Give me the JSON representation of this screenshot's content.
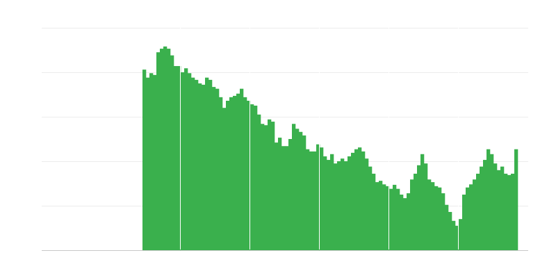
{
  "chart_data": {
    "type": "bar",
    "color": "#3ab04d",
    "grid": true,
    "ylim": [
      0,
      5
    ],
    "yticks": [
      0,
      1,
      2,
      3,
      4,
      5
    ],
    "values": [
      null,
      null,
      null,
      null,
      null,
      null,
      null,
      null,
      null,
      null,
      null,
      null,
      null,
      null,
      null,
      null,
      null,
      null,
      null,
      null,
      null,
      null,
      null,
      null,
      null,
      null,
      null,
      null,
      null,
      4.06,
      3.88,
      3.98,
      3.94,
      4.45,
      4.53,
      4.58,
      4.53,
      4.38,
      4.14,
      4.14,
      4.0,
      4.09,
      3.98,
      3.88,
      3.83,
      3.75,
      3.72,
      3.88,
      3.83,
      3.67,
      3.63,
      3.44,
      3.2,
      3.36,
      3.44,
      3.47,
      3.52,
      3.63,
      3.44,
      3.36,
      3.28,
      3.25,
      3.05,
      2.84,
      2.81,
      2.94,
      2.89,
      2.42,
      2.53,
      2.34,
      2.34,
      2.5,
      2.84,
      2.73,
      2.66,
      2.58,
      2.27,
      2.22,
      2.22,
      2.38,
      2.31,
      2.11,
      2.03,
      2.16,
      1.95,
      2.0,
      2.06,
      2.0,
      2.11,
      2.19,
      2.27,
      2.31,
      2.22,
      2.06,
      1.88,
      1.72,
      1.53,
      1.56,
      1.48,
      1.44,
      1.38,
      1.47,
      1.38,
      1.25,
      1.17,
      1.28,
      1.59,
      1.72,
      1.91,
      2.16,
      1.95,
      1.59,
      1.53,
      1.44,
      1.41,
      1.28,
      1.02,
      0.86,
      0.66,
      0.55,
      0.7,
      1.25,
      1.41,
      1.48,
      1.59,
      1.72,
      1.88,
      2.03,
      2.27,
      2.16,
      1.95,
      1.8,
      1.88,
      1.72,
      1.69,
      1.72,
      2.27,
      null,
      null,
      null
    ]
  }
}
